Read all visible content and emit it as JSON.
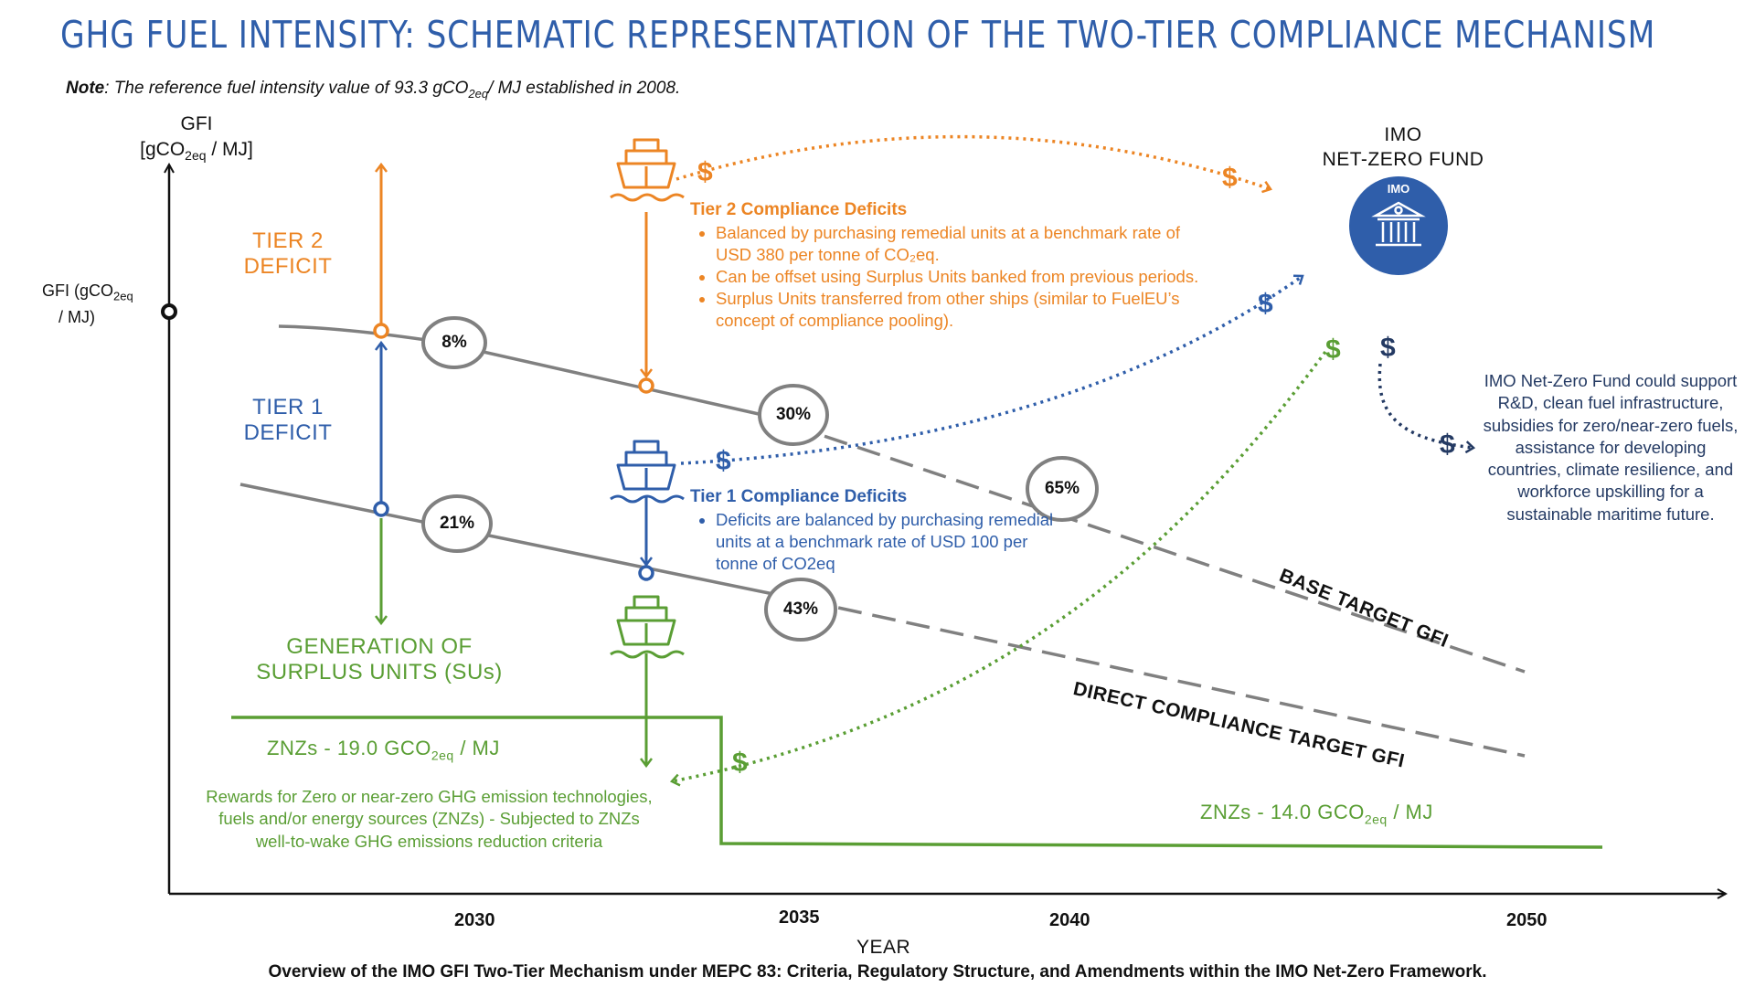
{
  "header": {
    "title": "GHG FUEL INTENSITY: SCHEMATIC REPRESENTATION OF THE TWO-TIER COMPLIANCE MECHANISM",
    "note_bold": "Note",
    "note_pre": ": The reference fuel intensity value of 93.3 gCO",
    "note_sub": "2eq",
    "note_post": "/ MJ established in 2008."
  },
  "axes": {
    "y_label_line1": "GFI",
    "y_label_pre": "[gCO",
    "y_label_sub": "2eq",
    "y_label_post": " / MJ]",
    "ref_label_pre": "GFI (gCO",
    "ref_label_sub": "2eq",
    "ref_label_line2": "/ MJ)",
    "x_label": "YEAR",
    "x_ticks": [
      "2030",
      "2035",
      "2040",
      "2050"
    ]
  },
  "tiers": {
    "tier2_line1": "TIER 2",
    "tier2_line2": "DEFICIT",
    "tier1_line1": "TIER 1",
    "tier1_line2": "DEFICIT",
    "surplus_line1": "GENERATION OF",
    "surplus_line2": "SURPLUS UNITS (SUs)"
  },
  "reductions": {
    "base": [
      "8%",
      "30%",
      "65%"
    ],
    "direct": [
      "21%",
      "43%"
    ]
  },
  "lines": {
    "base_target": "BASE TARGET GFI",
    "direct_target": "DIRECT COMPLIANCE TARGET GFI"
  },
  "tier2_box": {
    "heading": "Tier 2 Compliance Deficits",
    "bullets": [
      "Balanced by purchasing remedial units at a benchmark rate of USD 380 per tonne of CO₂eq.",
      "Can be offset using Surplus Units banked from previous periods.",
      "Surplus Units transferred from other ships (similar to FuelEU’s concept of compliance pooling)."
    ]
  },
  "tier1_box": {
    "heading": "Tier 1 Compliance Deficits",
    "bullets": [
      "Deficits are balanced by purchasing remedial units at a benchmark rate of USD 100 per tonne of CO2eq"
    ]
  },
  "fund": {
    "line1": "IMO",
    "line2": "NET-ZERO FUND",
    "logo_text": "IMO",
    "description": "IMO Net-Zero Fund could support R&D, clean fuel infrastructure, subsidies for zero/near-zero fuels, assistance for developing countries, climate resilience, and workforce upskilling for a sustainable maritime future."
  },
  "znz": {
    "left_pre": "ZNZs - 19.0 GCO",
    "left_sub": "2eq",
    "left_post": " / MJ",
    "right_pre": "ZNZs - 14.0 GCO",
    "right_sub": "2eq",
    "right_post": " / MJ",
    "rewards": "Rewards for Zero or near-zero GHG emission technologies, fuels and/or energy sources (ZNZs) - Subjected to ZNZs well-to-wake GHG emissions reduction criteria"
  },
  "symbols": {
    "dollar": "$"
  },
  "colors": {
    "orange": "#ec8524",
    "blue": "#2f5eaa",
    "green": "#5a9e34",
    "navy": "#243a63",
    "grey": "#808080"
  },
  "footer": "Overview of the IMO GFI Two-Tier Mechanism under MEPC 83: Criteria, Regulatory Structure, and Amendments within the IMO Net-Zero Framework."
}
